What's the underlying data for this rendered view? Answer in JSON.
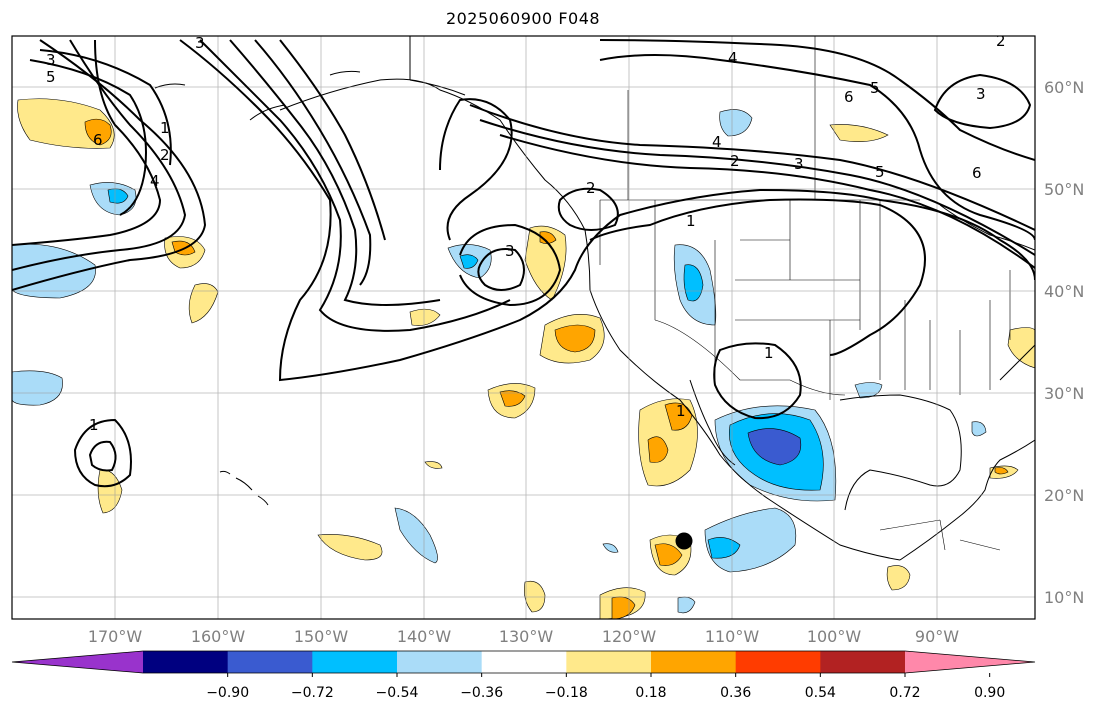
{
  "title": "2025060900 F048",
  "lon_labels": [
    "170°W",
    "160°W",
    "150°W",
    "140°W",
    "130°W",
    "120°W",
    "110°W",
    "100°W",
    "90°W"
  ],
  "lat_labels": [
    "60°N",
    "50°N",
    "40°N",
    "30°N",
    "20°N",
    "10°N"
  ],
  "colorbar": {
    "colors": [
      "#9933cc",
      "#000080",
      "#3a5bd0",
      "#00bfff",
      "#aadcf8",
      "#ffffff",
      "#ffe98b",
      "#ffa500",
      "#ff3c00",
      "#b22222",
      "#ff88aa"
    ],
    "labels": [
      "−0.90",
      "−0.72",
      "−0.54",
      "−0.36",
      "−0.18",
      "0.18",
      "0.36",
      "0.54",
      "0.72",
      "0.90"
    ]
  },
  "contour_labels": [
    "3",
    "5",
    "6",
    "1",
    "2",
    "4",
    "3",
    "2",
    "3",
    "1",
    "4",
    "2",
    "3",
    "5",
    "6",
    "5",
    "4",
    "3",
    "6",
    "1",
    "1",
    "1",
    "2"
  ],
  "marker": "storm-center-dot"
}
